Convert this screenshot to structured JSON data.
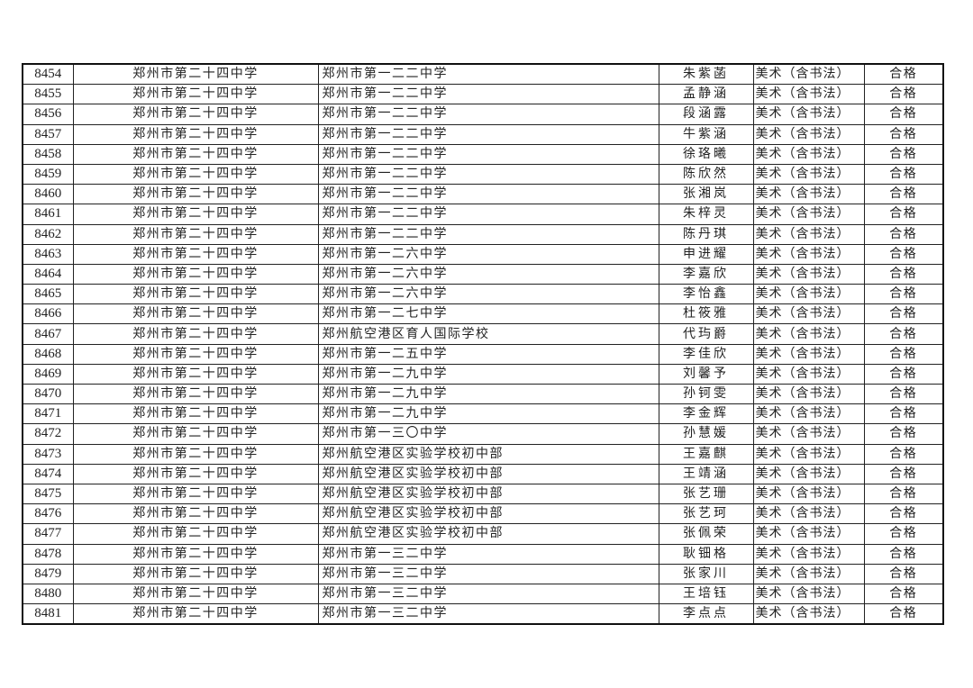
{
  "rows": [
    {
      "id": "8454",
      "school": "郑州市第二十四中学",
      "origin": "郑州市第一二二中学",
      "name": "朱紫菡",
      "subject": "美术（含书法）",
      "result": "合格"
    },
    {
      "id": "8455",
      "school": "郑州市第二十四中学",
      "origin": "郑州市第一二二中学",
      "name": "孟静涵",
      "subject": "美术（含书法）",
      "result": "合格"
    },
    {
      "id": "8456",
      "school": "郑州市第二十四中学",
      "origin": "郑州市第一二二中学",
      "name": "段涵露",
      "subject": "美术（含书法）",
      "result": "合格"
    },
    {
      "id": "8457",
      "school": "郑州市第二十四中学",
      "origin": "郑州市第一二二中学",
      "name": "牛紫涵",
      "subject": "美术（含书法）",
      "result": "合格"
    },
    {
      "id": "8458",
      "school": "郑州市第二十四中学",
      "origin": "郑州市第一二二中学",
      "name": "徐珞曦",
      "subject": "美术（含书法）",
      "result": "合格"
    },
    {
      "id": "8459",
      "school": "郑州市第二十四中学",
      "origin": "郑州市第一二二中学",
      "name": "陈欣然",
      "subject": "美术（含书法）",
      "result": "合格"
    },
    {
      "id": "8460",
      "school": "郑州市第二十四中学",
      "origin": "郑州市第一二二中学",
      "name": "张湘岚",
      "subject": "美术（含书法）",
      "result": "合格"
    },
    {
      "id": "8461",
      "school": "郑州市第二十四中学",
      "origin": "郑州市第一二二中学",
      "name": "朱梓灵",
      "subject": "美术（含书法）",
      "result": "合格"
    },
    {
      "id": "8462",
      "school": "郑州市第二十四中学",
      "origin": "郑州市第一二二中学",
      "name": "陈丹琪",
      "subject": "美术（含书法）",
      "result": "合格"
    },
    {
      "id": "8463",
      "school": "郑州市第二十四中学",
      "origin": "郑州市第一二六中学",
      "name": "申进耀",
      "subject": "美术（含书法）",
      "result": "合格"
    },
    {
      "id": "8464",
      "school": "郑州市第二十四中学",
      "origin": "郑州市第一二六中学",
      "name": "李嘉欣",
      "subject": "美术（含书法）",
      "result": "合格"
    },
    {
      "id": "8465",
      "school": "郑州市第二十四中学",
      "origin": "郑州市第一二六中学",
      "name": "李怡鑫",
      "subject": "美术（含书法）",
      "result": "合格"
    },
    {
      "id": "8466",
      "school": "郑州市第二十四中学",
      "origin": "郑州市第一二七中学",
      "name": "杜筱雅",
      "subject": "美术（含书法）",
      "result": "合格"
    },
    {
      "id": "8467",
      "school": "郑州市第二十四中学",
      "origin": "郑州航空港区育人国际学校",
      "name": "代玙爵",
      "subject": "美术（含书法）",
      "result": "合格"
    },
    {
      "id": "8468",
      "school": "郑州市第二十四中学",
      "origin": "郑州市第一二五中学",
      "name": "李佳欣",
      "subject": "美术（含书法）",
      "result": "合格"
    },
    {
      "id": "8469",
      "school": "郑州市第二十四中学",
      "origin": "郑州市第一二九中学",
      "name": "刘馨予",
      "subject": "美术（含书法）",
      "result": "合格"
    },
    {
      "id": "8470",
      "school": "郑州市第二十四中学",
      "origin": "郑州市第一二九中学",
      "name": "孙钶雯",
      "subject": "美术（含书法）",
      "result": "合格"
    },
    {
      "id": "8471",
      "school": "郑州市第二十四中学",
      "origin": "郑州市第一二九中学",
      "name": "李金辉",
      "subject": "美术（含书法）",
      "result": "合格"
    },
    {
      "id": "8472",
      "school": "郑州市第二十四中学",
      "origin": "郑州市第一三〇中学",
      "name": "孙慧媛",
      "subject": "美术（含书法）",
      "result": "合格"
    },
    {
      "id": "8473",
      "school": "郑州市第二十四中学",
      "origin": "郑州航空港区实验学校初中部",
      "name": "王嘉麒",
      "subject": "美术（含书法）",
      "result": "合格"
    },
    {
      "id": "8474",
      "school": "郑州市第二十四中学",
      "origin": "郑州航空港区实验学校初中部",
      "name": "王靖涵",
      "subject": "美术（含书法）",
      "result": "合格"
    },
    {
      "id": "8475",
      "school": "郑州市第二十四中学",
      "origin": "郑州航空港区实验学校初中部",
      "name": "张艺珊",
      "subject": "美术（含书法）",
      "result": "合格"
    },
    {
      "id": "8476",
      "school": "郑州市第二十四中学",
      "origin": "郑州航空港区实验学校初中部",
      "name": "张艺珂",
      "subject": "美术（含书法）",
      "result": "合格"
    },
    {
      "id": "8477",
      "school": "郑州市第二十四中学",
      "origin": "郑州航空港区实验学校初中部",
      "name": "张佩荣",
      "subject": "美术（含书法）",
      "result": "合格"
    },
    {
      "id": "8478",
      "school": "郑州市第二十四中学",
      "origin": "郑州市第一三二中学",
      "name": "耿钿格",
      "subject": "美术（含书法）",
      "result": "合格"
    },
    {
      "id": "8479",
      "school": "郑州市第二十四中学",
      "origin": "郑州市第一三二中学",
      "name": "张家川",
      "subject": "美术（含书法）",
      "result": "合格"
    },
    {
      "id": "8480",
      "school": "郑州市第二十四中学",
      "origin": "郑州市第一三二中学",
      "name": "王培钰",
      "subject": "美术（含书法）",
      "result": "合格"
    },
    {
      "id": "8481",
      "school": "郑州市第二十四中学",
      "origin": "郑州市第一三二中学",
      "name": "李点点",
      "subject": "美术（含书法）",
      "result": "合格"
    }
  ]
}
